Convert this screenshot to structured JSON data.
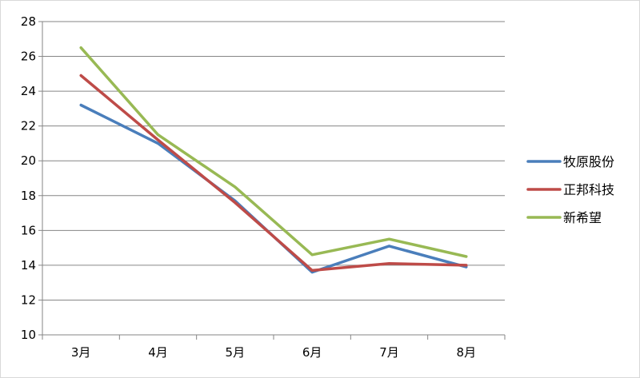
{
  "chart_data": {
    "type": "line",
    "categories": [
      "3月",
      "4月",
      "5月",
      "6月",
      "7月",
      "8月"
    ],
    "series": [
      {
        "name": "牧原股份",
        "color": "#4a7ebb",
        "values": [
          23.2,
          21.0,
          17.7,
          13.6,
          15.1,
          13.9
        ]
      },
      {
        "name": "正邦科技",
        "color": "#be4b48",
        "values": [
          24.9,
          21.2,
          17.6,
          13.7,
          14.1,
          14.0
        ]
      },
      {
        "name": "新希望",
        "color": "#98b954",
        "values": [
          26.5,
          21.5,
          18.5,
          14.6,
          15.5,
          14.5
        ]
      }
    ],
    "ylim": [
      10,
      28
    ],
    "yticks": [
      "10",
      "12",
      "14",
      "16",
      "18",
      "20",
      "22",
      "24",
      "26",
      "28"
    ],
    "grid": true,
    "legend_position": "right",
    "title": "",
    "xlabel": "",
    "ylabel": ""
  }
}
